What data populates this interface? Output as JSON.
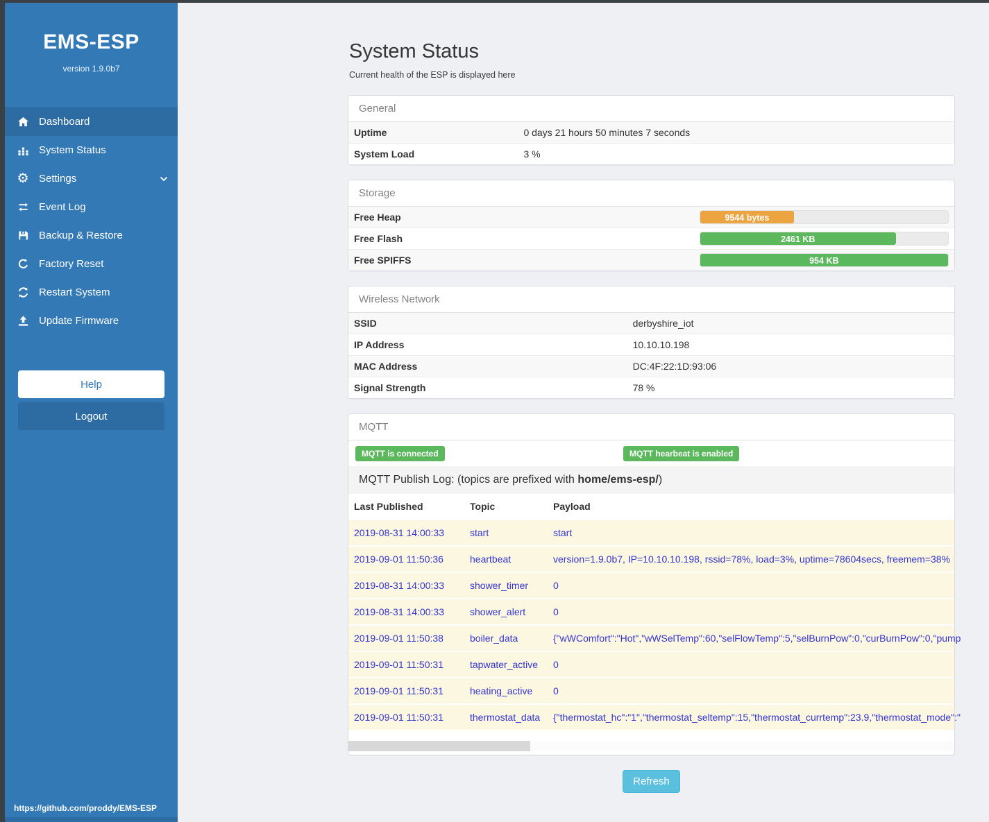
{
  "app": {
    "title": "EMS-ESP",
    "version": "version 1.9.0b7",
    "footer_link": "https://github.com/proddy/EMS-ESP"
  },
  "sidebar": {
    "items": [
      {
        "label": "Dashboard",
        "icon": "home-icon",
        "active": true
      },
      {
        "label": "System Status",
        "icon": "system-status-icon",
        "active": false
      },
      {
        "label": "Settings",
        "icon": "gear-icon",
        "active": false,
        "has_submenu": true
      },
      {
        "label": "Event Log",
        "icon": "exchange-icon",
        "active": false
      },
      {
        "label": "Backup & Restore",
        "icon": "save-icon",
        "active": false
      },
      {
        "label": "Factory Reset",
        "icon": "rotate-icon",
        "active": false
      },
      {
        "label": "Restart System",
        "icon": "sync-icon",
        "active": false
      },
      {
        "label": "Update Firmware",
        "icon": "upload-icon",
        "active": false
      }
    ],
    "help_label": "Help",
    "logout_label": "Logout"
  },
  "page": {
    "title": "System Status",
    "subtitle": "Current health of the ESP is displayed here",
    "refresh_label": "Refresh"
  },
  "panels": {
    "general": {
      "title": "General",
      "rows": [
        {
          "label": "Uptime",
          "value": "0 days 21 hours 50 minutes 7 seconds"
        },
        {
          "label": "System Load",
          "value": "3 %"
        }
      ]
    },
    "storage": {
      "title": "Storage",
      "rows": [
        {
          "label": "Free Heap",
          "value": "9544 bytes",
          "pct": 38,
          "color": "#eca440"
        },
        {
          "label": "Free Flash",
          "value": "2461 KB",
          "pct": 79,
          "color": "#5cb85c"
        },
        {
          "label": "Free SPIFFS",
          "value": "954 KB",
          "pct": 100,
          "color": "#5cb85c"
        }
      ]
    },
    "wireless": {
      "title": "Wireless Network",
      "rows": [
        {
          "label": "SSID",
          "value": "derbyshire_iot"
        },
        {
          "label": "IP Address",
          "value": "10.10.10.198"
        },
        {
          "label": "MAC Address",
          "value": "DC:4F:22:1D:93:06"
        },
        {
          "label": "Signal Strength",
          "value": "78 %"
        }
      ]
    },
    "mqtt": {
      "title": "MQTT",
      "badges": [
        "MQTT is connected",
        "MQTT hearbeat is enabled"
      ],
      "publish_log": {
        "prefix": "MQTT Publish Log: (topics are prefixed with ",
        "topic_prefix": "home/ems-esp/",
        "suffix": ")"
      },
      "table": {
        "headers": [
          "Last Published",
          "Topic",
          "Payload"
        ],
        "rows": [
          {
            "date": "2019-08-31 14:00:33",
            "topic": "start",
            "payload": "start"
          },
          {
            "date": "2019-09-01 11:50:36",
            "topic": "heartbeat",
            "payload": "version=1.9.0b7, IP=10.10.10.198, rssid=78%, load=3%, uptime=78604secs, freemem=38%"
          },
          {
            "date": "2019-08-31 14:00:33",
            "topic": "shower_timer",
            "payload": "0"
          },
          {
            "date": "2019-08-31 14:00:33",
            "topic": "shower_alert",
            "payload": "0"
          },
          {
            "date": "2019-09-01 11:50:38",
            "topic": "boiler_data",
            "payload": "{\"wWComfort\":\"Hot\",\"wWSelTemp\":60,\"selFlowTemp\":5,\"selBurnPow\":0,\"curBurnPow\":0,\"pump"
          },
          {
            "date": "2019-09-01 11:50:31",
            "topic": "tapwater_active",
            "payload": "0"
          },
          {
            "date": "2019-09-01 11:50:31",
            "topic": "heating_active",
            "payload": "0"
          },
          {
            "date": "2019-09-01 11:50:31",
            "topic": "thermostat_data",
            "payload": "{\"thermostat_hc\":\"1\",\"thermostat_seltemp\":15,\"thermostat_currtemp\":23.9,\"thermostat_mode\":\""
          }
        ]
      }
    }
  },
  "colors": {
    "frame_dark": "#3b4045",
    "sidebar_blue": "#3379b6",
    "sidebar_active_blue": "#2d6ca3",
    "badge_green": "#5cb85c",
    "bar_orange": "#eca440",
    "bar_green": "#5cb85c",
    "refresh_blue": "#5bc0de",
    "log_text_blue": "#3434cf",
    "log_row_bg": "#fcf7e1",
    "content_bg": "#eef0f4"
  }
}
